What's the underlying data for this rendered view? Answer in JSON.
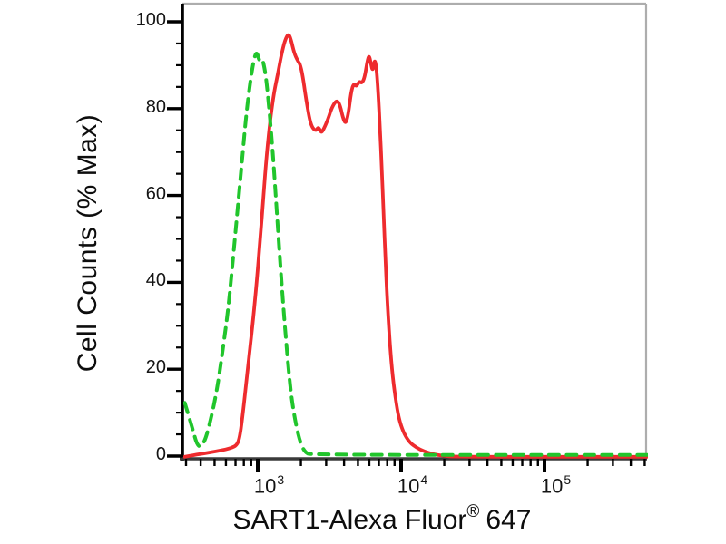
{
  "figure": {
    "background": "#ffffff",
    "frame_color": "#adadad",
    "axis_color": "#000000",
    "tick_label_color": "#141414"
  },
  "chart_data": {
    "type": "line",
    "subtype": "flow-cytometry-overlay-histogram",
    "title": "",
    "xlabel": {
      "main": "SART1-Alexa Fluor",
      "sup": "®",
      "suffix": "647"
    },
    "ylabel": "Cell Counts (% Max)",
    "x_scale": "log10",
    "x_range": [
      310,
      520000
    ],
    "y_range": [
      0,
      104
    ],
    "grid": false,
    "legend": "none",
    "x_major_ticks": [
      {
        "value": 1000,
        "base": "10",
        "exp": "3"
      },
      {
        "value": 10000,
        "base": "10",
        "exp": "4"
      },
      {
        "value": 100000,
        "base": "10",
        "exp": "5"
      }
    ],
    "x_minor_multiples": [
      2,
      3,
      4,
      5,
      6,
      7,
      8,
      9
    ],
    "y_major_ticks": [
      0,
      20,
      40,
      60,
      80,
      100
    ],
    "y_minor_step": 5,
    "series": [
      {
        "name": "green-dashed-control",
        "color": "#21c52c",
        "style": "dashed",
        "peak": {
          "x": 990,
          "y_pct": 93
        },
        "points": [
          [
            310,
            12
          ],
          [
            345,
            6.9
          ],
          [
            383,
            1.5
          ],
          [
            424,
            2.7
          ],
          [
            469,
            7.9
          ],
          [
            521,
            15.2
          ],
          [
            567,
            23.6
          ],
          [
            620,
            33
          ],
          [
            665,
            43.4
          ],
          [
            716,
            54.9
          ],
          [
            770,
            66.4
          ],
          [
            828,
            77.9
          ],
          [
            891,
            86.6
          ],
          [
            944,
            91.4
          ],
          [
            986,
            92.9
          ],
          [
            1031,
            90.4
          ],
          [
            1076,
            91.6
          ],
          [
            1141,
            87.3
          ],
          [
            1208,
            78.9
          ],
          [
            1282,
            68.5
          ],
          [
            1359,
            56
          ],
          [
            1440,
            43.4
          ],
          [
            1527,
            31.9
          ],
          [
            1619,
            21.5
          ],
          [
            1716,
            13.2
          ],
          [
            1847,
            6.9
          ],
          [
            1988,
            2.7
          ],
          [
            2136,
            0.6
          ],
          [
            2350,
            0
          ],
          [
            520000,
            0
          ]
        ]
      },
      {
        "name": "red-solid-sart1-stained",
        "color": "#ee2b2e",
        "style": "solid",
        "peak": {
          "x": 1640,
          "y_pct": 97.5
        },
        "points": [
          [
            310,
            0
          ],
          [
            360,
            0.4
          ],
          [
            430,
            0.8
          ],
          [
            520,
            1.3
          ],
          [
            600,
            1.7
          ],
          [
            660,
            2.1
          ],
          [
            710,
            2.6
          ],
          [
            745,
            4
          ],
          [
            782,
            9
          ],
          [
            828,
            16.5
          ],
          [
            876,
            24
          ],
          [
            928,
            31.5
          ],
          [
            982,
            40
          ],
          [
            1040,
            50
          ],
          [
            1096,
            60
          ],
          [
            1157,
            70
          ],
          [
            1226,
            78
          ],
          [
            1300,
            84
          ],
          [
            1377,
            88
          ],
          [
            1460,
            92.5
          ],
          [
            1548,
            96
          ],
          [
            1641,
            97.5
          ],
          [
            1715,
            95.8
          ],
          [
            1793,
            93
          ],
          [
            1899,
            91.2
          ],
          [
            1988,
            90.2
          ],
          [
            2083,
            86.6
          ],
          [
            2182,
            82
          ],
          [
            2287,
            78
          ],
          [
            2395,
            75.8
          ],
          [
            2541,
            75
          ],
          [
            2654,
            76
          ],
          [
            2773,
            74.5
          ],
          [
            2897,
            75.6
          ],
          [
            3070,
            77.5
          ],
          [
            3253,
            80
          ],
          [
            3447,
            81.6
          ],
          [
            3600,
            82
          ],
          [
            3760,
            80.8
          ],
          [
            3928,
            78
          ],
          [
            4103,
            76.6
          ],
          [
            4286,
            79
          ],
          [
            4477,
            84
          ],
          [
            4676,
            86
          ],
          [
            4884,
            85.2
          ],
          [
            5102,
            86.5
          ],
          [
            5329,
            86
          ],
          [
            5566,
            87.3
          ],
          [
            5814,
            91.2
          ],
          [
            5985,
            92.5
          ],
          [
            6161,
            90.4
          ],
          [
            6342,
            88.7
          ],
          [
            6529,
            91.6
          ],
          [
            6721,
            89.8
          ],
          [
            6919,
            84
          ],
          [
            7123,
            75.8
          ],
          [
            7332,
            66.4
          ],
          [
            7548,
            55.9
          ],
          [
            7770,
            45.5
          ],
          [
            7999,
            36.1
          ],
          [
            8357,
            25.7
          ],
          [
            8731,
            18.4
          ],
          [
            9250,
            12.1
          ],
          [
            9800,
            7.9
          ],
          [
            10530,
            5.2
          ],
          [
            11490,
            3.3
          ],
          [
            12800,
            2.1
          ],
          [
            14350,
            1.3
          ],
          [
            16600,
            0.6
          ],
          [
            19850,
            0.2
          ],
          [
            23500,
            0
          ],
          [
            520000,
            0
          ]
        ]
      }
    ]
  }
}
